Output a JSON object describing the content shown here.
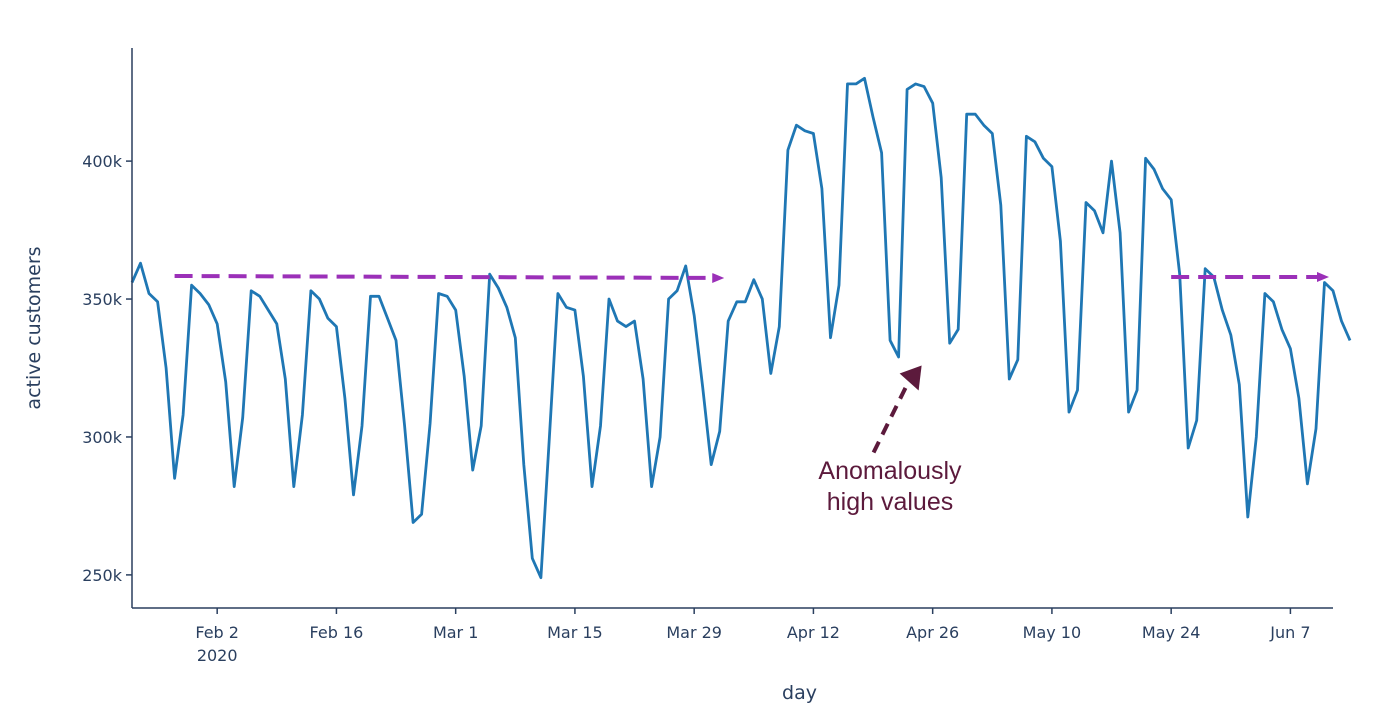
{
  "chart_data": {
    "type": "line",
    "xlabel": "day",
    "ylabel": "active customers",
    "x_start": "2020-01-23",
    "x_end": "2020-06-12",
    "xlim": [
      "2020-01-23",
      "2020-06-12"
    ],
    "ylim": [
      238000,
      441000
    ],
    "x_ticks": [
      {
        "date": "2020-02-02",
        "label": "Feb 2",
        "sublabel": "2020"
      },
      {
        "date": "2020-02-16",
        "label": "Feb 16"
      },
      {
        "date": "2020-03-01",
        "label": "Mar 1"
      },
      {
        "date": "2020-03-15",
        "label": "Mar 15"
      },
      {
        "date": "2020-03-29",
        "label": "Mar 29"
      },
      {
        "date": "2020-04-12",
        "label": "Apr 12"
      },
      {
        "date": "2020-04-26",
        "label": "Apr 26"
      },
      {
        "date": "2020-05-10",
        "label": "May 10"
      },
      {
        "date": "2020-05-24",
        "label": "May 24"
      },
      {
        "date": "2020-06-07",
        "label": "Jun 7"
      }
    ],
    "y_ticks": [
      {
        "value": 250000,
        "label": "250k"
      },
      {
        "value": 300000,
        "label": "300k"
      },
      {
        "value": 350000,
        "label": "350k"
      },
      {
        "value": 400000,
        "label": "400k"
      }
    ],
    "series": [
      {
        "color": "#1f77b4",
        "values": [
          356000,
          363000,
          352000,
          349000,
          325000,
          285000,
          308000,
          355000,
          352000,
          348000,
          341000,
          320000,
          282000,
          307000,
          353000,
          351000,
          346000,
          341000,
          321000,
          282000,
          308000,
          353000,
          350000,
          343000,
          340000,
          314000,
          279000,
          304000,
          351000,
          351000,
          343000,
          335000,
          304000,
          269000,
          272000,
          305000,
          352000,
          351000,
          346000,
          322000,
          288000,
          304000,
          359000,
          354000,
          347000,
          336000,
          290000,
          256000,
          249000,
          300000,
          352000,
          347000,
          346000,
          322000,
          282000,
          304000,
          350000,
          342000,
          340000,
          342000,
          321000,
          282000,
          300000,
          350000,
          353000,
          362000,
          344000,
          318000,
          290000,
          302000,
          342000,
          349000,
          349000,
          357000,
          350000,
          323000,
          340000,
          404000,
          413000,
          411000,
          410000,
          390000,
          336000,
          355000,
          428000,
          428000,
          430000,
          416000,
          403000,
          335000,
          329000,
          426000,
          428000,
          427000,
          421000,
          394000,
          334000,
          339000,
          417000,
          417000,
          413000,
          410000,
          384000,
          321000,
          328000,
          409000,
          407000,
          401000,
          398000,
          371000,
          309000,
          317000,
          385000,
          382000,
          374000,
          400000,
          374000,
          309000,
          317000,
          401000,
          397000,
          390000,
          386000,
          359000,
          296000,
          306000,
          361000,
          358000,
          346000,
          337000,
          319000,
          271000,
          300000,
          352000,
          349000,
          339000,
          332000,
          314000,
          283000,
          303000,
          356000,
          353000,
          342000,
          335000
        ]
      }
    ],
    "annotations": {
      "line_text": "Anomalously",
      "line_text_2": "high values",
      "text_color": "#5c1a3c",
      "arrow_color": "#5c1a3c",
      "baseline_color": "#9b30b8",
      "baseline_value": 358000,
      "baseline_segments": [
        {
          "from": "2020-01-28",
          "to": "2020-04-02"
        },
        {
          "from": "2020-05-24",
          "to": "2020-06-12"
        }
      ],
      "arrow_from": {
        "date": "2020-04-20",
        "value": 298000
      },
      "arrow_to": {
        "date": "2020-04-24",
        "value": 323000
      }
    }
  }
}
